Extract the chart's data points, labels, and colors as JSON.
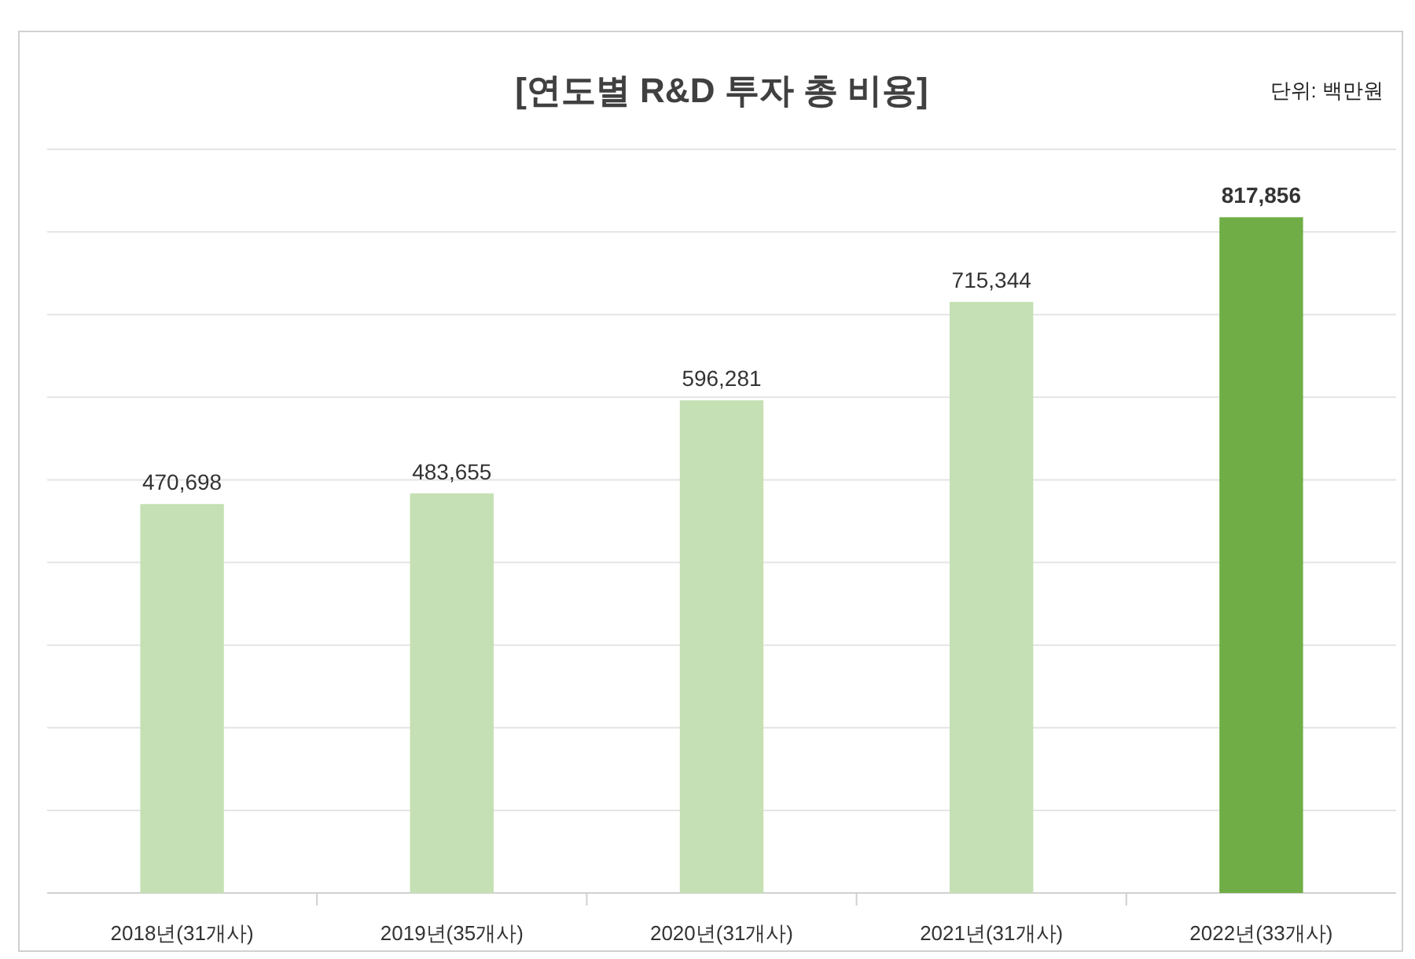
{
  "chart_data": {
    "type": "bar",
    "title": "[연도별 R&D 투자 총 비용]",
    "annotations": [
      "단위: 백만원"
    ],
    "categories": [
      "2018년(31개사)",
      "2019년(35개사)",
      "2020년(31개사)",
      "2021년(31개사)",
      "2022년(33개사)"
    ],
    "values": [
      470698,
      483655,
      596281,
      715344,
      817856
    ],
    "value_labels": [
      "470,698",
      "483,655",
      "596,281",
      "715,344",
      "817,856"
    ],
    "colors": [
      "#c5e0b4",
      "#c5e0b4",
      "#c5e0b4",
      "#c5e0b4",
      "#70ad47"
    ],
    "ylim": [
      0,
      900000
    ],
    "yticks": [
      {
        "value": 0,
        "label": null
      },
      {
        "value": 100000,
        "label": null
      },
      {
        "value": 200000,
        "label": null
      },
      {
        "value": 300000,
        "label": null
      },
      {
        "value": 400000,
        "label": null
      },
      {
        "value": 500000,
        "label": null
      },
      {
        "value": 600000,
        "label": null
      },
      {
        "value": 700000,
        "label": null
      },
      {
        "value": 800000,
        "label": null
      },
      {
        "value": 900000,
        "label": null
      }
    ],
    "grid": "y",
    "tick_labels": "x"
  }
}
